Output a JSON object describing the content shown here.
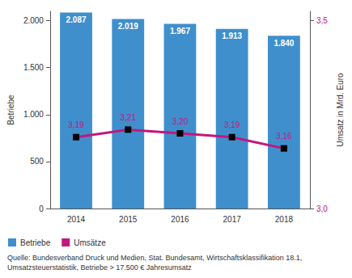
{
  "chart_data": {
    "type": "bar",
    "source": "Quelle: Bundesverband Druck und Medien, Stat. Bundesamt, Wirtschaftsklassifikation 18.1, Umsatzsteuerstatistik, Betriebe > 17.500 € Jahresumsatz",
    "categories": [
      "2014",
      "2015",
      "2016",
      "2017",
      "2018"
    ],
    "y_label": "Betriebe",
    "y2_label": "Umsatz in Mrd. Euro",
    "ylim": [
      0,
      2100
    ],
    "yticks": [
      0,
      500,
      {
        "value": 1000,
        "label": "1.000"
      },
      {
        "value": 1500,
        "label": "1.500"
      },
      {
        "value": 2000,
        "label": "2.000"
      }
    ],
    "y2lim": [
      3.0,
      3.525
    ],
    "y2ticks": [
      {
        "value": 3.0,
        "label": "3,0"
      },
      {
        "value": 3.5,
        "label": "3,5"
      }
    ],
    "grid": false,
    "legend": "bottom left",
    "data_labels": true,
    "series": [
      {
        "name": "Betriebe",
        "type": "bar",
        "color": "#3f8fcd",
        "values": [
          2087,
          2019,
          1967,
          1913,
          1840
        ],
        "value_labels": [
          "2.087",
          "2.019",
          "1.967",
          "1.913",
          "1.840"
        ]
      },
      {
        "name": "Umsätze",
        "type": "line",
        "axis": "y2",
        "color": "#c2177e",
        "marker": "square",
        "values": [
          3.19,
          3.21,
          3.2,
          3.19,
          3.16
        ],
        "value_labels": [
          "3,19",
          "3,21",
          "3,20",
          "3,19",
          "3,16"
        ]
      }
    ]
  }
}
